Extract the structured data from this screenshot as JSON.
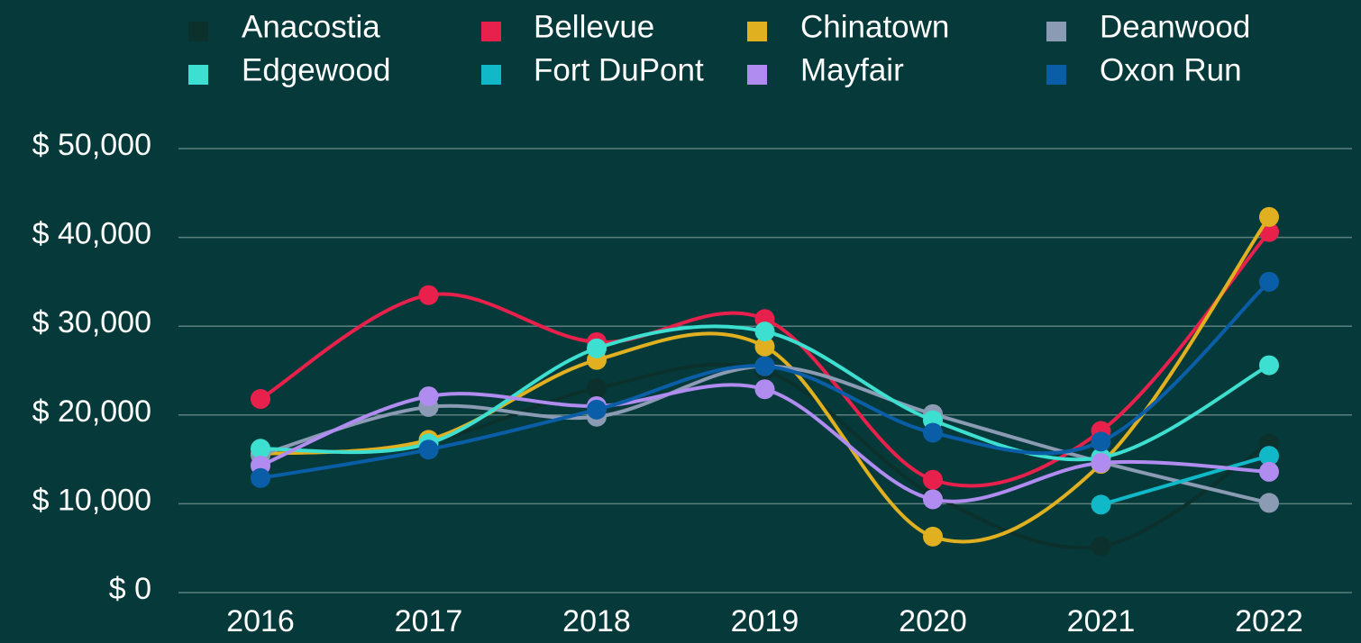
{
  "chart_data": {
    "type": "line",
    "categories": [
      "2016",
      "2017",
      "2018",
      "2019",
      "2020",
      "2021",
      "2022"
    ],
    "series": [
      {
        "name": "Anacostia",
        "color": "#0c302c",
        "values": [
          15500,
          17000,
          23000,
          25000,
          11000,
          5200,
          16800
        ]
      },
      {
        "name": "Bellevue",
        "color": "#e8204c",
        "values": [
          21800,
          33500,
          28200,
          30800,
          12700,
          18200,
          40600
        ]
      },
      {
        "name": "Chinatown",
        "color": "#e0b020",
        "values": [
          15600,
          17200,
          26200,
          27700,
          6300,
          14500,
          42300
        ]
      },
      {
        "name": "Deanwood",
        "color": "#8c9bb4",
        "values": [
          15500,
          20900,
          19800,
          25500,
          20100,
          14700,
          10100
        ]
      },
      {
        "name": "Edgewood",
        "color": "#3de0d0",
        "values": [
          16200,
          16800,
          27500,
          29400,
          19400,
          15200,
          25600
        ]
      },
      {
        "name": "Fort DuPont",
        "color": "#10b8c8",
        "values": [
          null,
          null,
          null,
          null,
          null,
          9900,
          15400
        ]
      },
      {
        "name": "Mayfair",
        "color": "#b08cf0",
        "values": [
          14300,
          22100,
          21000,
          22900,
          10500,
          14600,
          13600
        ]
      },
      {
        "name": "Oxon Run",
        "color": "#0a5ea8",
        "values": [
          12900,
          16100,
          20600,
          25500,
          18000,
          17000,
          35000
        ]
      }
    ],
    "ylim": [
      0,
      50000
    ],
    "yticks": [
      {
        "value": 0,
        "label": "$ 0"
      },
      {
        "value": 10000,
        "label": "$ 10,000"
      },
      {
        "value": 20000,
        "label": "$ 20,000"
      },
      {
        "value": 30000,
        "label": "$ 30,000"
      },
      {
        "value": 40000,
        "label": "$ 40,000"
      },
      {
        "value": 50000,
        "label": "$ 50,000"
      }
    ],
    "grid": true,
    "legend": "top"
  }
}
